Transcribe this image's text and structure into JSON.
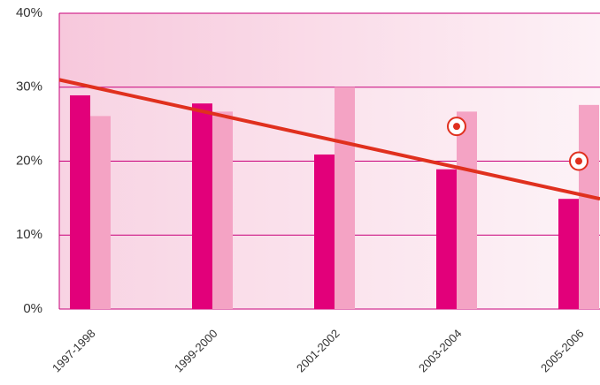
{
  "chart_data": {
    "type": "bar",
    "categories": [
      "1997-1998",
      "1999-2000",
      "2001-2002",
      "2003-2004",
      "2005-2006"
    ],
    "series": [
      {
        "color": "#e2007a",
        "values": [
          28.9,
          27.8,
          20.9,
          18.9,
          14.9
        ]
      },
      {
        "color": "#f4a3c4",
        "values": [
          26.1,
          26.7,
          30,
          26.7,
          27.6
        ]
      }
    ],
    "targets": {
      "color": "#e0301e",
      "values": [
        null,
        null,
        null,
        24.7,
        20
      ]
    },
    "trend": {
      "color": "#e0301e",
      "start": 31,
      "end": 14.9
    },
    "ylim": [
      0,
      40
    ],
    "yticks": [
      {
        "value": 0,
        "label": "0%"
      },
      {
        "value": 10,
        "label": "10%"
      },
      {
        "value": 20,
        "label": "20%"
      },
      {
        "value": 30,
        "label": "30%"
      },
      {
        "value": 40,
        "label": "40%"
      }
    ],
    "grid": true
  }
}
